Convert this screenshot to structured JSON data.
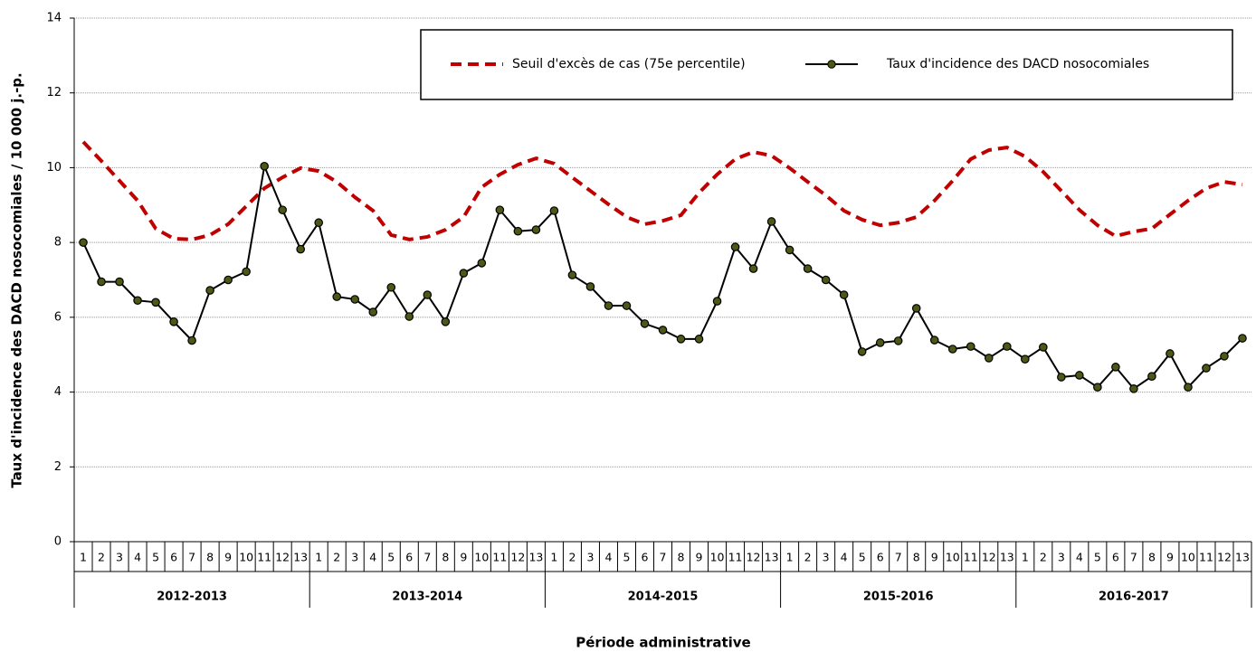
{
  "chart_data": {
    "type": "line",
    "ylabel": "Taux d'incidence des DACD nosocomiales / 10 000 j.-p.",
    "xlabel": "Période administrative",
    "categories": [
      "1",
      "2",
      "3",
      "4",
      "5",
      "6",
      "7",
      "8",
      "9",
      "10",
      "11",
      "12",
      "13",
      "1",
      "2",
      "3",
      "4",
      "5",
      "6",
      "7",
      "8",
      "9",
      "10",
      "11",
      "12",
      "13",
      "1",
      "2",
      "3",
      "4",
      "5",
      "6",
      "7",
      "8",
      "9",
      "10",
      "11",
      "12",
      "13",
      "1",
      "2",
      "3",
      "4",
      "5",
      "6",
      "7",
      "8",
      "9",
      "10",
      "11",
      "12",
      "13",
      "1",
      "2",
      "3",
      "4",
      "5",
      "6",
      "7",
      "8",
      "9",
      "10",
      "11",
      "12",
      "13"
    ],
    "category_groups": [
      "2012-2013",
      "2013-2014",
      "2014-2015",
      "2015-2016",
      "2016-2017"
    ],
    "series": [
      {
        "name": "Seuil d'excès de cas (75e percentile)",
        "color": "#c00000",
        "dashed": true,
        "values": [
          10.69,
          10.18,
          9.65,
          9.12,
          8.37,
          8.1,
          8.08,
          8.2,
          8.49,
          8.97,
          9.45,
          9.74,
          9.99,
          9.91,
          9.62,
          9.21,
          8.85,
          8.2,
          8.08,
          8.15,
          8.34,
          8.68,
          9.48,
          9.82,
          10.08,
          10.25,
          10.11,
          9.74,
          9.38,
          9.02,
          8.68,
          8.49,
          8.58,
          8.73,
          9.33,
          9.82,
          10.23,
          10.42,
          10.32,
          9.99,
          9.62,
          9.26,
          8.85,
          8.61,
          8.46,
          8.53,
          8.68,
          9.12,
          9.65,
          10.23,
          10.47,
          10.54,
          10.3,
          9.89,
          9.38,
          8.87,
          8.46,
          8.17,
          8.29,
          8.37,
          8.75,
          9.12,
          9.45,
          9.62,
          9.55
        ]
      },
      {
        "name": "Taux d'incidence des DACD nosocomiales",
        "color": "#000000",
        "marker_fill": "#4a5a14",
        "markers": true,
        "values": [
          8.0,
          6.95,
          6.95,
          6.45,
          6.4,
          5.88,
          5.38,
          6.72,
          7.0,
          7.22,
          10.04,
          8.87,
          7.82,
          8.53,
          6.55,
          6.48,
          6.14,
          6.8,
          6.02,
          6.6,
          5.88,
          7.18,
          7.45,
          8.87,
          8.3,
          8.34,
          8.85,
          7.13,
          6.82,
          6.31,
          6.31,
          5.83,
          5.66,
          5.42,
          5.42,
          6.43,
          7.88,
          7.3,
          8.56,
          7.8,
          7.3,
          7.0,
          6.6,
          5.08,
          5.32,
          5.37,
          6.24,
          5.39,
          5.15,
          5.22,
          4.91,
          5.22,
          4.88,
          5.2,
          4.4,
          4.45,
          4.13,
          4.67,
          4.09,
          4.42,
          5.03,
          4.13,
          4.64,
          4.96,
          5.44
        ]
      }
    ],
    "ylim": [
      0,
      14
    ],
    "yticks": [
      0,
      2,
      4,
      6,
      8,
      10,
      12,
      14
    ],
    "grid": true,
    "legend": "top-right"
  }
}
